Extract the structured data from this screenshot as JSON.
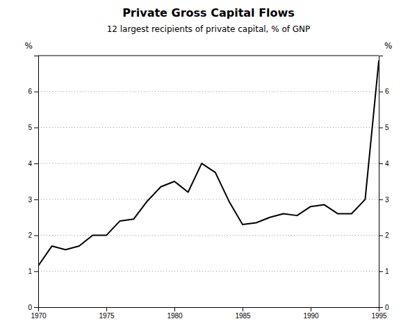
{
  "chart_data": {
    "type": "line",
    "title": "Private Gross Capital Flows",
    "subtitle": "12 largest recipients of private capital, % of GNP",
    "ylabel": "%",
    "y2label": "%",
    "x": [
      1970,
      1971,
      1972,
      1973,
      1974,
      1975,
      1976,
      1977,
      1978,
      1979,
      1980,
      1981,
      1982,
      1983,
      1984,
      1985,
      1986,
      1987,
      1988,
      1989,
      1990,
      1991,
      1992,
      1993,
      1994,
      1995
    ],
    "values": [
      1.15,
      1.7,
      1.6,
      1.7,
      2.0,
      2.0,
      2.4,
      2.45,
      2.95,
      3.35,
      3.5,
      3.2,
      4.0,
      3.75,
      2.95,
      2.3,
      2.35,
      2.5,
      2.6,
      2.55,
      2.8,
      2.85,
      2.6,
      2.6,
      3.0,
      6.85
    ],
    "color": "#000000",
    "xlim": [
      1970,
      1995
    ],
    "xticks": [
      1970,
      1975,
      1980,
      1985,
      1990,
      1995
    ],
    "ylim": [
      0,
      7
    ],
    "yticks": [
      0,
      1,
      2,
      3,
      4,
      5,
      6
    ],
    "y2lim": [
      0,
      7
    ],
    "y2ticks": [
      0,
      1,
      2,
      3,
      4,
      5,
      6
    ],
    "grid": true
  }
}
